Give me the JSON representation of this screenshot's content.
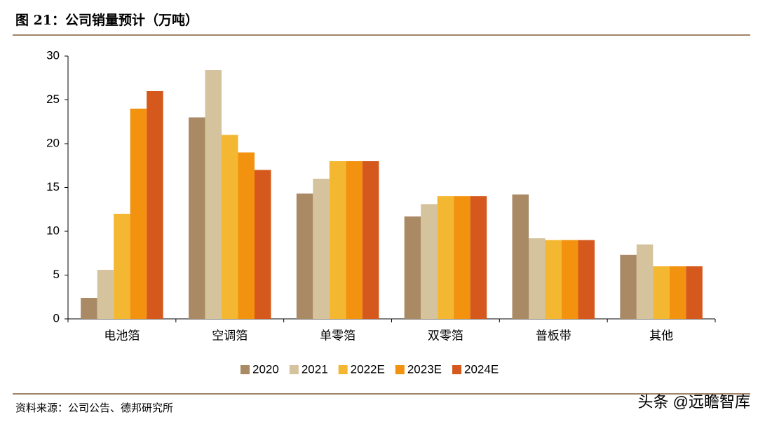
{
  "chart_data": {
    "type": "bar",
    "title": "图 21：公司销量预计（万吨）",
    "source": "资料来源：公司公告、德邦研究所",
    "watermark": "头条 @远瞻智库",
    "categories": [
      "电池箔",
      "空调箔",
      "单零箔",
      "双零箔",
      "普板带",
      "其他"
    ],
    "series": [
      {
        "name": "2020",
        "color": "#a98a64",
        "values": [
          2.4,
          23,
          14.3,
          11.7,
          14.2,
          7.3
        ]
      },
      {
        "name": "2021",
        "color": "#d5c39d",
        "values": [
          5.6,
          28.4,
          16,
          13.1,
          9.2,
          8.5
        ]
      },
      {
        "name": "2022E",
        "color": "#f4b731",
        "values": [
          12,
          21,
          18,
          14,
          9,
          6
        ]
      },
      {
        "name": "2023E",
        "color": "#f2920f",
        "values": [
          24,
          19,
          18,
          14,
          9,
          6
        ]
      },
      {
        "name": "2024E",
        "color": "#d5591c",
        "values": [
          26,
          17,
          18,
          14,
          9,
          6
        ]
      }
    ],
    "ylim": [
      0,
      30
    ],
    "yticks": [
      0,
      5,
      10,
      15,
      20,
      25,
      30
    ],
    "grid": false,
    "legend": "bottom"
  }
}
